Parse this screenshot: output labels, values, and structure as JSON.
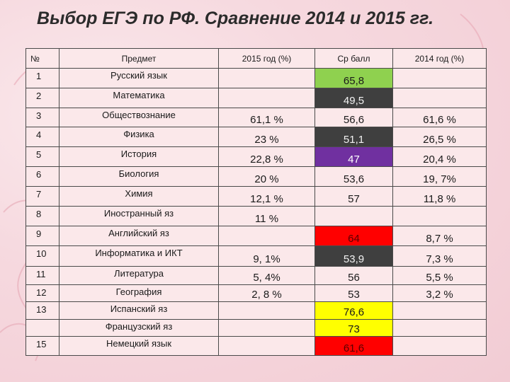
{
  "title": "Выбор ЕГЭ по РФ. Сравнение 2014 и 2015 гг.",
  "headers": {
    "num": "№",
    "subject": "Предмет",
    "y2015": "2015 год (%)",
    "avg": "Ср балл",
    "y2014": "2014 год (%)"
  },
  "rows": [
    {
      "num": "1",
      "subject": "Русский язык",
      "y2015": "",
      "avg": "65,8",
      "y2014": "",
      "avg_color": "#8fd14f"
    },
    {
      "num": "2",
      "subject": "Математика",
      "y2015": "",
      "avg": "49,5",
      "y2014": "",
      "avg_color": "#3f3f3f"
    },
    {
      "num": "3",
      "subject": "Обществознание",
      "y2015": "61,1 %",
      "avg": "56,6",
      "y2014": "61,6 %",
      "avg_color": ""
    },
    {
      "num": "4",
      "subject": "Физика",
      "y2015": "23 %",
      "avg": "51,1",
      "y2014": "26,5 %",
      "avg_color": "#3f3f3f"
    },
    {
      "num": "5",
      "subject": "История",
      "y2015": "22,8 %",
      "avg": "47",
      "y2014": "20,4 %",
      "avg_color": "#7030a0"
    },
    {
      "num": "6",
      "subject": "Биология",
      "y2015": "20 %",
      "avg": "53,6",
      "y2014": "19, 7%",
      "avg_color": ""
    },
    {
      "num": "7",
      "subject": "Химия",
      "y2015": "12,1 %",
      "avg": "57",
      "y2014": "11,8 %",
      "avg_color": ""
    },
    {
      "num": "8",
      "subject": "Иностранный яз",
      "y2015": "11 %",
      "avg": "",
      "y2014": "",
      "avg_color": ""
    },
    {
      "num": "9",
      "subject": "Английский яз",
      "y2015": "",
      "avg": "64",
      "y2014": "8,7 %",
      "avg_color": "#ff0000"
    },
    {
      "num": "10",
      "subject": "Информатика и ИКТ",
      "y2015": "9, 1%",
      "avg": "53,9",
      "y2014": "7,3 %",
      "avg_color": "#3f3f3f"
    },
    {
      "num": "11",
      "subject": "Литература",
      "y2015": "5, 4%",
      "avg": "56",
      "y2014": "5,5 %",
      "avg_color": ""
    },
    {
      "num": "12",
      "subject": "География",
      "y2015": "2, 8 %",
      "avg": "53",
      "y2014": "3,2 %",
      "avg_color": ""
    },
    {
      "num": "13",
      "subject": "Испанский яз",
      "y2015": "",
      "avg": "76,6",
      "y2014": "",
      "avg_color": "#ffff00"
    },
    {
      "num": "",
      "subject": "Французский яз",
      "y2015": "",
      "avg": "73",
      "y2014": "",
      "avg_color": "#ffff00"
    },
    {
      "num": "15",
      "subject": "Немецкий язык",
      "y2015": "",
      "avg": "61,6",
      "y2014": "",
      "avg_color": "#ff0000"
    }
  ]
}
